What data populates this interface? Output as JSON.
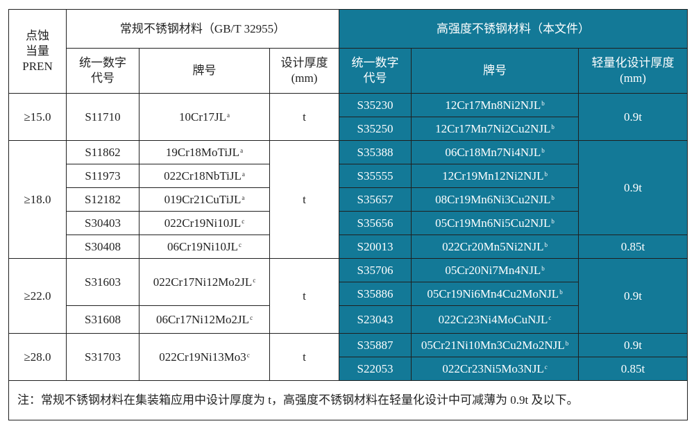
{
  "header": {
    "pren": "点蚀当量PREN",
    "pren_line1": "点蚀",
    "pren_line2": "当量",
    "pren_line3": "PREN",
    "regular_title": "常规不锈钢材料（GB/T 32955）",
    "high_title": "高强度不锈钢材料（本文件）",
    "code_line1": "统一数字",
    "code_line2": "代号",
    "grade": "牌号",
    "thickness_line1": "设计厚度",
    "thickness_line2": "(mm)",
    "light_thickness_line1": "轻量化设计厚度",
    "light_thickness_line2": "(mm)"
  },
  "pren_groups": [
    "≥15.0",
    "≥18.0",
    "≥22.0",
    "≥28.0"
  ],
  "regular_thickness": "t",
  "regular": [
    {
      "code": "S11710",
      "grade": "10Cr17JL",
      "note": "a"
    },
    {
      "code": "S11862",
      "grade": "19Cr18MoTiJL",
      "note": "a"
    },
    {
      "code": "S11973",
      "grade": "022Cr18NbTiJL",
      "note": "a"
    },
    {
      "code": "S12182",
      "grade": "019Cr21CuTiJL",
      "note": "a"
    },
    {
      "code": "S30403",
      "grade": "022Cr19Ni10JL",
      "note": "c"
    },
    {
      "code": "S30408",
      "grade": "06Cr19Ni10JL",
      "note": "c"
    },
    {
      "code": "S31603",
      "grade": "022Cr17Ni12Mo2JL",
      "note": "c"
    },
    {
      "code": "S31608",
      "grade": "06Cr17Ni12Mo2JL",
      "note": "c"
    },
    {
      "code": "S31703",
      "grade": "022Cr19Ni13Mo3",
      "note": "c"
    }
  ],
  "high": [
    {
      "code": "S35230",
      "grade": "12Cr17Mn8Ni2NJL",
      "note": "b"
    },
    {
      "code": "S35250",
      "grade": "12Cr17Mn7Ni2Cu2NJL",
      "note": "b"
    },
    {
      "code": "S35388",
      "grade": "06Cr18Mn7Ni4NJL",
      "note": "b"
    },
    {
      "code": "S35555",
      "grade": "12Cr19Mn12Ni2NJL",
      "note": "b"
    },
    {
      "code": "S35657",
      "grade": "08Cr19Mn6Ni3Cu2NJL",
      "note": "b"
    },
    {
      "code": "S35656",
      "grade": "05Cr19Mn6Ni5Cu2NJL",
      "note": "b"
    },
    {
      "code": "S20013",
      "grade": "022Cr20Mn5Ni2NJL",
      "note": "b"
    },
    {
      "code": "S35706",
      "grade": "05Cr20Ni7Mn4NJL",
      "note": "b"
    },
    {
      "code": "S35886",
      "grade": "05Cr19Ni6Mn4Cu2MoNJL",
      "note": "b"
    },
    {
      "code": "S23043",
      "grade": "022Cr23Ni4MoCuNJL",
      "note": "c"
    },
    {
      "code": "S35887",
      "grade": "05Cr21Ni10Mn3Cu2Mo2NJL",
      "note": "b"
    },
    {
      "code": "S22053",
      "grade": "022Cr23Ni5Mo3NJL",
      "note": "c"
    }
  ],
  "high_thickness": [
    "0.9t",
    "0.9t",
    "0.85t",
    "0.9t",
    "0.9t",
    "0.85t"
  ],
  "footnote": "注：常规不锈钢材料在集装箱应用中设计厚度为 t，高强度不锈钢材料在轻量化设计中可减薄为 0.9t 及以下。",
  "colors": {
    "highlight": "#137997",
    "highlight_text": "#ffffff",
    "border": "#1f1f1f"
  }
}
